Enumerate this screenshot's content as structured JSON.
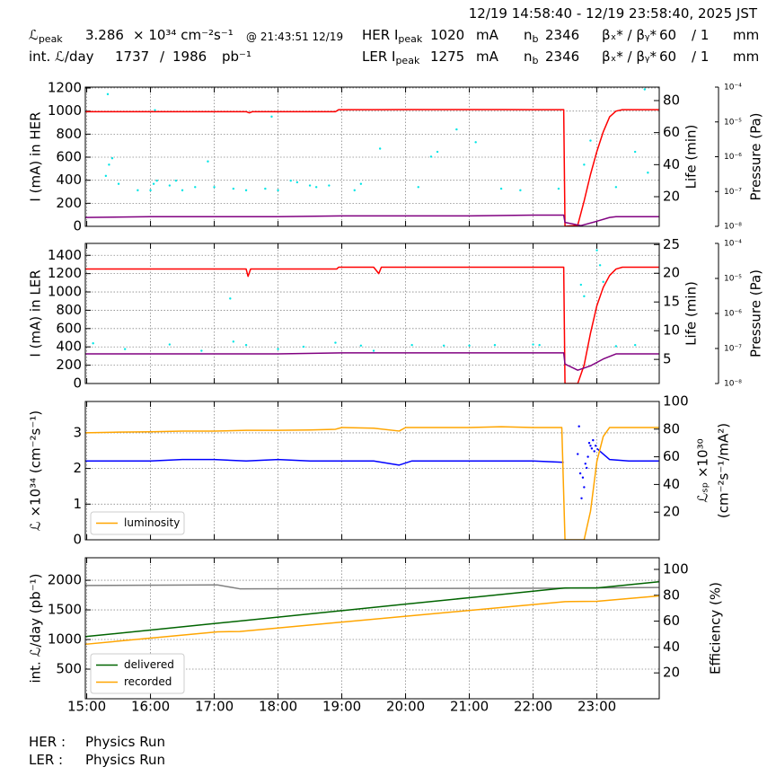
{
  "header": {
    "date_range": "12/19 14:58:40 - 12/19 23:58:40, 2025 JST",
    "peak_luminosity": {
      "symbol": "ℒ",
      "sub": "peak",
      "value": "3.286",
      "unit": "× 10³⁴ cm⁻²s⁻¹",
      "time": "@ 21:43:51 12/19"
    },
    "integrated": {
      "label": "int. ℒ/day",
      "today": "1737",
      "sep": "/",
      "total": "1986",
      "unit": "pb⁻¹"
    },
    "rings": [
      {
        "label": "HER I",
        "sub": "peak",
        "current": "1020",
        "current_unit": "mA",
        "nb_label": "n",
        "nb_sub": "b",
        "nb": "2346",
        "beta_label": "βₓ* / βᵧ*",
        "beta_x": "60",
        "beta_y": "/ 1",
        "beta_unit": "mm"
      },
      {
        "label": "LER I",
        "sub": "peak",
        "current": "1275",
        "current_unit": "mA",
        "nb_label": "n",
        "nb_sub": "b",
        "nb": "2346",
        "beta_label": "βₓ* / βᵧ*",
        "beta_x": "60",
        "beta_y": "/ 1",
        "beta_unit": "mm"
      }
    ]
  },
  "footer": {
    "rows": [
      {
        "ring": "HER :",
        "mode": "Physics Run"
      },
      {
        "ring": "LER :",
        "mode": "Physics Run"
      }
    ]
  },
  "chart_data": [
    {
      "type": "line",
      "ylabel": "I (mA) in HER",
      "y2label": [
        "Life (min)"
      ],
      "y3label": "Pressure (Pa)",
      "grid": true,
      "xlim": [
        14.978,
        23.978
      ],
      "xticks": [
        15,
        16,
        17,
        18,
        19,
        20,
        21,
        22,
        23
      ],
      "ylim": [
        0,
        1208
      ],
      "yticks": [
        0,
        200,
        400,
        600,
        800,
        1000,
        1200
      ],
      "y2lim": [
        1.5,
        88.4
      ],
      "y2ticks": [
        20,
        40,
        60,
        80
      ],
      "y3lim": [
        1e-08,
        0.0001
      ],
      "y3scale": "log",
      "y3ticks": [
        {
          "value": 1e-08,
          "label": "10⁻⁸"
        },
        {
          "value": 1e-07,
          "label": "10⁻⁷"
        },
        {
          "value": 1e-06,
          "label": "10⁻⁶"
        },
        {
          "value": 1e-05,
          "label": "10⁻⁵"
        },
        {
          "value": 0.0001,
          "label": "10⁻⁴"
        }
      ],
      "series": [
        {
          "type": "scatter",
          "axis": "y2",
          "color": "#00e5e5",
          "x": [
            15.3,
            15.33,
            15.35,
            15.4,
            15.5,
            15.8,
            16.0,
            16.05,
            16.07,
            16.1,
            16.3,
            16.4,
            16.5,
            16.7,
            16.9,
            17.0,
            17.3,
            17.5,
            17.8,
            17.9,
            18.0,
            18.2,
            18.3,
            18.5,
            18.6,
            18.8,
            19.2,
            19.3,
            19.6,
            20.2,
            20.4,
            20.5,
            20.8,
            21.1,
            21.5,
            21.8,
            22.4,
            22.8,
            22.9,
            23.3,
            23.6,
            23.75,
            23.8
          ],
          "values": [
            33,
            84,
            40,
            44,
            28,
            24,
            24,
            28,
            74,
            30,
            27,
            30,
            24,
            26,
            42,
            26,
            25,
            24,
            25,
            70,
            24,
            30,
            29,
            27,
            26,
            27,
            24,
            28,
            50,
            26,
            45,
            48,
            62,
            54,
            25,
            24,
            25,
            40,
            55,
            26,
            48,
            87,
            35
          ]
        },
        {
          "type": "line",
          "axis": "y",
          "color": "#ff0000",
          "x": [
            14.98,
            15.5,
            16,
            16.5,
            17,
            17.5,
            17.55,
            17.6,
            18,
            18.5,
            18.9,
            18.95,
            19.5,
            20,
            20.5,
            21,
            21.5,
            22,
            22.48,
            22.5,
            22.7,
            22.8,
            22.9,
            23.0,
            23.1,
            23.2,
            23.3,
            23.4,
            23.97
          ],
          "values": [
            995,
            995,
            995,
            995,
            995,
            995,
            985,
            995,
            995,
            995,
            995,
            1012,
            1012,
            1013,
            1013,
            1013,
            1013,
            1012,
            1012,
            0,
            10,
            220,
            450,
            650,
            820,
            950,
            1000,
            1012,
            1012
          ]
        },
        {
          "type": "line",
          "axis": "y3",
          "color": "#800080",
          "x": [
            14.98,
            16,
            17,
            18,
            19,
            20,
            21,
            22,
            22.48,
            22.5,
            22.75,
            23.0,
            23.2,
            23.3,
            23.97
          ],
          "values": [
            1.8e-08,
            1.9e-08,
            1.9e-08,
            1.9e-08,
            2e-08,
            2e-08,
            2e-08,
            2.1e-08,
            2.1e-08,
            1.3e-08,
            1.05e-08,
            1.4e-08,
            1.8e-08,
            1.9e-08,
            1.9e-08
          ]
        }
      ]
    },
    {
      "type": "line",
      "ylabel": "I (mA) in LER",
      "y2label": [
        "Life (min)"
      ],
      "y3label": "Pressure (Pa)",
      "grid": true,
      "xlim": [
        14.978,
        23.978
      ],
      "xticks": [
        15,
        16,
        17,
        18,
        19,
        20,
        21,
        22,
        23
      ],
      "ylim": [
        0,
        1530
      ],
      "yticks": [
        0,
        200,
        400,
        600,
        800,
        1000,
        1200,
        1400
      ],
      "y2lim": [
        0.8,
        25.2
      ],
      "y2ticks": [
        5,
        10,
        15,
        20,
        25
      ],
      "y3lim": [
        1e-08,
        0.0001
      ],
      "y3scale": "log",
      "y3ticks": [
        {
          "value": 1e-08,
          "label": "10⁻⁸"
        },
        {
          "value": 1e-07,
          "label": "10⁻⁷"
        },
        {
          "value": 1e-06,
          "label": "10⁻⁶"
        },
        {
          "value": 1e-05,
          "label": "10⁻⁵"
        },
        {
          "value": 0.0001,
          "label": "10⁻⁴"
        }
      ],
      "series": [
        {
          "type": "scatter",
          "axis": "y2",
          "color": "#00e5e5",
          "x": [
            15.1,
            15.6,
            16.3,
            16.8,
            17.25,
            17.3,
            17.5,
            18.0,
            18.4,
            18.9,
            19.3,
            19.5,
            20.1,
            20.6,
            21.0,
            21.4,
            22.0,
            22.1,
            22.75,
            22.8,
            23.0,
            23.05,
            23.1,
            23.3,
            23.6
          ],
          "values": [
            7.8,
            6.8,
            7.6,
            6.5,
            15.6,
            8.1,
            7.5,
            6.8,
            7.2,
            7.9,
            7.4,
            6.5,
            7.5,
            7.4,
            7.4,
            7.5,
            7.6,
            7.5,
            18,
            16,
            24,
            21.4,
            18.5,
            7.3,
            7.5
          ]
        },
        {
          "type": "line",
          "axis": "y",
          "color": "#ff0000",
          "x": [
            14.98,
            15.5,
            16,
            16.5,
            17,
            17.5,
            17.53,
            17.57,
            17.6,
            18,
            18.5,
            18.92,
            18.95,
            19.5,
            19.58,
            19.62,
            19.65,
            20,
            20.5,
            21,
            21.5,
            22,
            22.48,
            22.5,
            22.7,
            22.8,
            22.9,
            23.0,
            23.1,
            23.2,
            23.3,
            23.4,
            23.97
          ],
          "values": [
            1250,
            1250,
            1250,
            1250,
            1250,
            1250,
            1170,
            1250,
            1250,
            1250,
            1250,
            1250,
            1270,
            1270,
            1200,
            1270,
            1270,
            1270,
            1270,
            1270,
            1270,
            1270,
            1270,
            0,
            0,
            200,
            550,
            850,
            1050,
            1180,
            1250,
            1270,
            1270
          ]
        },
        {
          "type": "line",
          "axis": "y3",
          "color": "#800080",
          "x": [
            14.98,
            16,
            17,
            18,
            19,
            20,
            21,
            22,
            22.48,
            22.5,
            22.7,
            22.9,
            23.1,
            23.3,
            23.97
          ],
          "values": [
            7e-08,
            7e-08,
            7e-08,
            7e-08,
            7.5e-08,
            7.5e-08,
            7.5e-08,
            7.5e-08,
            7.5e-08,
            3.6e-08,
            2.4e-08,
            3.2e-08,
            5e-08,
            7e-08,
            7e-08
          ]
        }
      ]
    },
    {
      "type": "line",
      "ylabel": "ℒ ×10³⁴ (cm⁻²s⁻¹)",
      "y2label": [
        "ℒₛₚ ×10³⁰",
        "(cm⁻²s⁻¹/mA²)"
      ],
      "grid": true,
      "legend": "lower left",
      "xlim": [
        14.978,
        23.978
      ],
      "xticks": [
        15,
        16,
        17,
        18,
        19,
        20,
        21,
        22,
        23
      ],
      "ylim": [
        0,
        3.88
      ],
      "yticks": [
        0,
        1,
        2,
        3
      ],
      "y2lim": [
        0,
        100
      ],
      "y2ticks": [
        20,
        40,
        60,
        80,
        100
      ],
      "series": [
        {
          "type": "line",
          "axis": "y2",
          "color": "#0000ff",
          "x": [
            14.98,
            15.5,
            16,
            16.5,
            17,
            17.5,
            18,
            18.5,
            19,
            19.5,
            19.9,
            20.1,
            20.5,
            21,
            21.5,
            22,
            22.48,
            22.6,
            23.0,
            23.1,
            23.2,
            23.5,
            23.97
          ],
          "values": [
            57,
            57,
            57,
            58,
            58,
            57,
            58,
            57,
            57,
            57,
            54,
            57,
            57,
            57,
            57,
            57,
            56,
            null,
            66,
            62,
            58,
            57,
            57
          ]
        },
        {
          "type": "scatter",
          "axis": "y2",
          "color": "#0000ff",
          "x": [
            22.7,
            22.72,
            22.74,
            22.76,
            22.78,
            22.8,
            22.82,
            22.84,
            22.86,
            22.88,
            22.9,
            22.92,
            22.94,
            22.96,
            22.98
          ],
          "values": [
            62,
            82,
            48,
            30,
            45,
            38,
            55,
            52,
            60,
            70,
            68,
            66,
            72,
            64,
            68
          ]
        },
        {
          "type": "line",
          "axis": "y",
          "color": "#ffa500",
          "name": "luminosity",
          "x": [
            14.98,
            15.5,
            16,
            16.5,
            17,
            17.5,
            18,
            18.5,
            18.9,
            19.0,
            19.5,
            19.9,
            20.0,
            20.5,
            21,
            21.5,
            22,
            22.45,
            22.5,
            22.8,
            22.9,
            23.0,
            23.1,
            23.2,
            23.5,
            23.97
          ],
          "values": [
            3.0,
            3.02,
            3.03,
            3.05,
            3.05,
            3.07,
            3.07,
            3.08,
            3.1,
            3.15,
            3.13,
            3.05,
            3.15,
            3.15,
            3.15,
            3.17,
            3.15,
            3.15,
            0,
            0,
            0.8,
            2.2,
            2.9,
            3.15,
            3.15,
            3.15
          ]
        }
      ]
    },
    {
      "type": "line",
      "ylabel": "int. ℒ/day (pb⁻¹)",
      "y2label": [
        "Efficiency (%)"
      ],
      "grid": true,
      "legend": "lower left",
      "xlim": [
        14.978,
        23.978
      ],
      "xticks": [
        {
          "value": 15,
          "label": "15:00"
        },
        {
          "value": 16,
          "label": "16:00"
        },
        {
          "value": 17,
          "label": "17:00"
        },
        {
          "value": 18,
          "label": "18:00"
        },
        {
          "value": 19,
          "label": "19:00"
        },
        {
          "value": 20,
          "label": "20:00"
        },
        {
          "value": 21,
          "label": "21:00"
        },
        {
          "value": 22,
          "label": "22:00"
        },
        {
          "value": 23,
          "label": "23:00"
        }
      ],
      "ylim": [
        0,
        2380
      ],
      "yticks": [
        500,
        1000,
        1500,
        2000
      ],
      "y2lim": [
        0,
        109
      ],
      "y2ticks": [
        20,
        40,
        60,
        80,
        100
      ],
      "series": [
        {
          "type": "line",
          "axis": "y2",
          "color": "#808080",
          "x": [
            14.98,
            17.0,
            17.05,
            17.4,
            22.5,
            23.97
          ],
          "values": [
            87.6,
            88,
            88,
            85,
            85.5,
            86
          ]
        },
        {
          "type": "line",
          "axis": "y",
          "color": "#006400",
          "name": "delivered",
          "x": [
            14.98,
            16,
            17,
            18,
            19,
            20,
            21,
            22,
            22.5,
            23.0,
            23.97
          ],
          "values": [
            1050,
            1159,
            1269,
            1378,
            1487,
            1597,
            1706,
            1815,
            1870,
            1870,
            1975
          ]
        },
        {
          "type": "line",
          "axis": "y",
          "color": "#ffa500",
          "name": "recorded",
          "x": [
            14.98,
            17.05,
            17.4,
            22.5,
            23.0,
            23.97
          ],
          "values": [
            920,
            1130,
            1135,
            1640,
            1645,
            1735
          ]
        }
      ]
    }
  ]
}
